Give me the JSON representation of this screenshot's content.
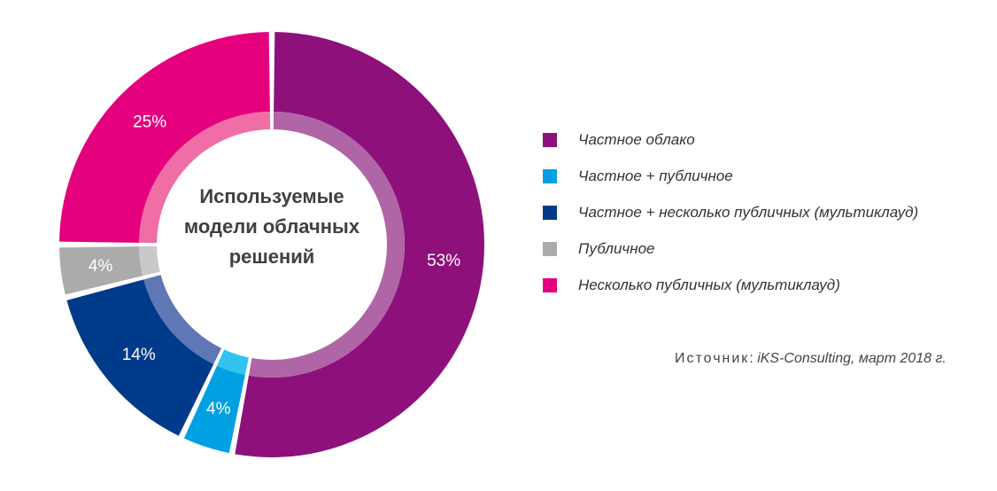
{
  "chart_data": {
    "type": "pie",
    "title": "Используемые модели облачных решений",
    "categories": [
      "Частное облако",
      "Частное + публичное",
      "Частное + несколько публичных (мультиклауд)",
      "Публичное",
      "Несколько публичных (мультиклауд)"
    ],
    "values": [
      53,
      4,
      14,
      4,
      25
    ],
    "value_labels": [
      "53%",
      "4%",
      "14%",
      "4%",
      "25%"
    ],
    "colors": [
      "#8e117b",
      "#00a0e3",
      "#003b89",
      "#ababab",
      "#e5007e"
    ],
    "inner_colors": [
      "#b066a6",
      "#33c1ef",
      "#5f78b5",
      "#c8c8c8",
      "#ef6ea6"
    ],
    "legend_position": "right"
  },
  "source": {
    "label": "Источник",
    "separator": ": ",
    "value": "iKS-Consulting, март 2018 г."
  }
}
